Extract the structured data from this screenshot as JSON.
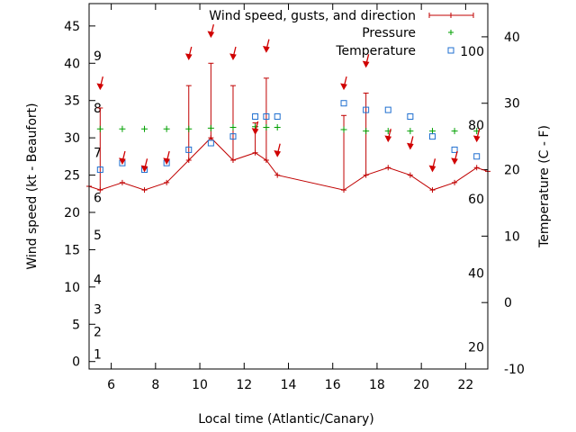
{
  "chart_data": {
    "type": "line",
    "xlabel": "Local time (Atlantic/Canary)",
    "ylabel": "Wind speed (kt - Beaufort)",
    "y2label": "Temperature (C - F)",
    "xlim": [
      5,
      23
    ],
    "ylim": [
      -1,
      48
    ],
    "y2lim": [
      -10,
      45
    ],
    "grid": false,
    "legend_position": "top-right",
    "x_ticks": [
      6,
      8,
      10,
      12,
      14,
      16,
      18,
      20,
      22
    ],
    "y_ticks": [
      0,
      5,
      10,
      15,
      20,
      25,
      30,
      35,
      40,
      45
    ],
    "y2_ticks": [
      -10,
      0,
      10,
      20,
      30,
      40
    ],
    "beaufort_labels": [
      {
        "label": "1",
        "kt": 1
      },
      {
        "label": "2",
        "kt": 4
      },
      {
        "label": "3",
        "kt": 7
      },
      {
        "label": "4",
        "kt": 11
      },
      {
        "label": "5",
        "kt": 17
      },
      {
        "label": "6",
        "kt": 22
      },
      {
        "label": "7",
        "kt": 28
      },
      {
        "label": "8",
        "kt": 34
      },
      {
        "label": "9",
        "kt": 41
      }
    ],
    "fahrenheit_labels": [
      {
        "label": "20",
        "c": -6.7
      },
      {
        "label": "40",
        "c": 4.4
      },
      {
        "label": "60",
        "c": 15.6
      },
      {
        "label": "80",
        "c": 26.7
      },
      {
        "label": "100",
        "c": 37.8
      }
    ],
    "series": [
      {
        "name": "Wind speed, gusts, and direction",
        "color": "#c00000",
        "x": [
          5,
          5.5,
          6.5,
          7.5,
          8.5,
          9.5,
          10.5,
          11.5,
          12.5,
          13,
          13.5,
          16.5,
          17.5,
          18.5,
          19.5,
          20.5,
          21.5,
          22.5,
          23
        ],
        "values": [
          23.5,
          23,
          24,
          23,
          24,
          27,
          30,
          27,
          28,
          27,
          25,
          23,
          25,
          26,
          25,
          23,
          24,
          26,
          25.5
        ],
        "gusts": [
          null,
          34,
          null,
          null,
          null,
          37,
          40,
          37,
          32,
          38,
          null,
          33,
          36,
          null,
          null,
          null,
          null,
          null,
          null
        ]
      },
      {
        "name": "Pressure",
        "color": "#00a000",
        "x": [
          5.5,
          6.5,
          7.5,
          8.5,
          9.5,
          10.5,
          11.5,
          12.5,
          13,
          13.5,
          16.5,
          17.5,
          18.5,
          19.5,
          20.5,
          21.5,
          22.5
        ],
        "values": [
          31.2,
          31.2,
          31.2,
          31.2,
          31.2,
          31.3,
          31.4,
          31.5,
          31.4,
          31.4,
          31.1,
          30.9,
          30.9,
          30.9,
          30.9,
          30.9,
          30.9
        ]
      },
      {
        "name": "Temperature",
        "color": "#1f6fd0",
        "axis": "right",
        "x": [
          5.5,
          6.5,
          7.5,
          8.5,
          9.5,
          10.5,
          11.5,
          12.5,
          13,
          13.5,
          16.5,
          17.5,
          18.5,
          19.5,
          20.5,
          21.5,
          22.5
        ],
        "values": [
          20,
          21,
          20,
          21,
          23,
          24,
          25,
          28,
          28,
          28,
          30,
          29,
          29,
          28,
          25,
          23,
          22
        ]
      }
    ],
    "wind_direction_arrows": [
      {
        "x": 5.5,
        "kt": 37
      },
      {
        "x": 6.5,
        "kt": 27
      },
      {
        "x": 7.5,
        "kt": 26
      },
      {
        "x": 8.5,
        "kt": 27
      },
      {
        "x": 9.5,
        "kt": 41
      },
      {
        "x": 10.5,
        "kt": 44
      },
      {
        "x": 11.5,
        "kt": 41
      },
      {
        "x": 12.5,
        "kt": 31
      },
      {
        "x": 13,
        "kt": 42
      },
      {
        "x": 13.5,
        "kt": 28
      },
      {
        "x": 16.5,
        "kt": 37
      },
      {
        "x": 17.5,
        "kt": 40
      },
      {
        "x": 18.5,
        "kt": 30
      },
      {
        "x": 19.5,
        "kt": 29
      },
      {
        "x": 20.5,
        "kt": 26
      },
      {
        "x": 21.5,
        "kt": 27
      },
      {
        "x": 22.5,
        "kt": 30
      }
    ]
  }
}
